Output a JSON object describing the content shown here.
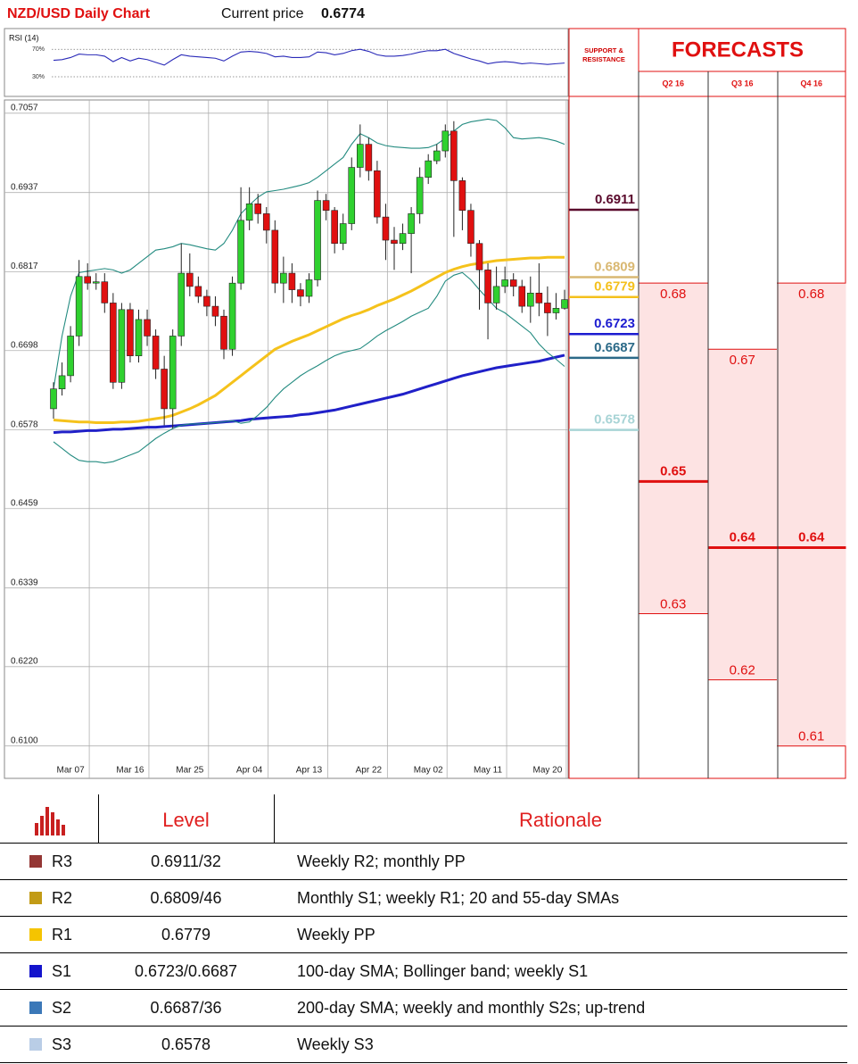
{
  "header": {
    "title": "NZD/USD Daily Chart",
    "price_label": "Current price",
    "price": 0.6774
  },
  "chart_data": [
    {
      "type": "candlestick",
      "categories": [
        null,
        null,
        "Mar 07",
        null,
        null,
        null,
        null,
        null,
        null,
        "Mar 16",
        null,
        null,
        null,
        null,
        null,
        null,
        "Mar 25",
        null,
        null,
        null,
        null,
        null,
        null,
        "Apr 04",
        null,
        null,
        null,
        null,
        null,
        null,
        "Apr 13",
        null,
        null,
        null,
        null,
        null,
        null,
        "Apr 22",
        null,
        null,
        null,
        null,
        null,
        null,
        "May 02",
        null,
        null,
        null,
        null,
        null,
        null,
        "May 11",
        null,
        null,
        null,
        null,
        null,
        null,
        "May 20",
        null,
        null
      ],
      "open": [
        0.661,
        0.664,
        0.666,
        0.672,
        0.681,
        0.68,
        0.6802,
        0.677,
        0.665,
        0.676,
        0.669,
        0.6745,
        0.672,
        0.667,
        0.661,
        0.672,
        0.6815,
        0.6795,
        0.678,
        0.6765,
        0.675,
        0.67,
        0.68,
        0.6895,
        0.692,
        0.6905,
        0.688,
        0.68,
        0.6815,
        0.679,
        0.678,
        0.6805,
        0.6925,
        0.691,
        0.686,
        0.689,
        0.6975,
        0.701,
        0.697,
        0.69,
        0.6865,
        0.686,
        0.6875,
        0.6905,
        0.696,
        0.6985,
        0.7,
        0.703,
        0.6955,
        0.691,
        0.686,
        0.682,
        0.677,
        0.6795,
        0.6805,
        0.6795,
        0.6765,
        0.6785,
        0.677,
        0.6755,
        0.6762
      ],
      "high": [
        0.665,
        0.668,
        0.6735,
        0.6835,
        0.683,
        0.6815,
        0.6815,
        0.6785,
        0.677,
        0.677,
        0.676,
        0.676,
        0.673,
        0.669,
        0.673,
        0.686,
        0.6845,
        0.681,
        0.679,
        0.678,
        0.676,
        0.681,
        0.6945,
        0.6945,
        0.6935,
        0.6915,
        0.6895,
        0.684,
        0.683,
        0.68,
        0.6815,
        0.694,
        0.6935,
        0.6915,
        0.6905,
        0.699,
        0.704,
        0.702,
        0.6985,
        0.692,
        0.6885,
        0.689,
        0.6915,
        0.6975,
        0.6995,
        0.701,
        0.704,
        0.7045,
        0.696,
        0.692,
        0.6865,
        0.683,
        0.6825,
        0.6825,
        0.6815,
        0.6805,
        0.681,
        0.683,
        0.6795,
        0.6785,
        0.679
      ],
      "low": [
        0.6595,
        0.663,
        0.665,
        0.6705,
        0.679,
        0.679,
        0.6755,
        0.664,
        0.664,
        0.668,
        0.668,
        0.6705,
        0.6655,
        0.6585,
        0.658,
        0.6705,
        0.678,
        0.677,
        0.675,
        0.6735,
        0.6685,
        0.669,
        0.679,
        0.688,
        0.689,
        0.686,
        0.6785,
        0.677,
        0.677,
        0.6765,
        0.677,
        0.6795,
        0.6895,
        0.6845,
        0.685,
        0.688,
        0.696,
        0.6955,
        0.689,
        0.6835,
        0.682,
        0.685,
        0.6815,
        0.689,
        0.695,
        0.698,
        0.699,
        0.687,
        0.688,
        0.684,
        0.676,
        0.6715,
        0.676,
        0.6785,
        0.678,
        0.6755,
        0.674,
        0.675,
        0.672,
        0.6745,
        0.676
      ],
      "close": [
        0.664,
        0.666,
        0.672,
        0.681,
        0.68,
        0.6802,
        0.677,
        0.665,
        0.676,
        0.669,
        0.6745,
        0.672,
        0.667,
        0.661,
        0.672,
        0.6815,
        0.6795,
        0.678,
        0.6765,
        0.675,
        0.67,
        0.68,
        0.6895,
        0.692,
        0.6905,
        0.688,
        0.68,
        0.6815,
        0.679,
        0.678,
        0.6805,
        0.6925,
        0.691,
        0.686,
        0.689,
        0.6975,
        0.701,
        0.697,
        0.69,
        0.6865,
        0.686,
        0.6875,
        0.6905,
        0.696,
        0.6985,
        0.7,
        0.703,
        0.6955,
        0.691,
        0.686,
        0.682,
        0.677,
        0.6795,
        0.6805,
        0.6795,
        0.6765,
        0.6785,
        0.677,
        0.6755,
        0.6762,
        0.6775
      ],
      "up_color": "#2fd12f",
      "down_color": "#e01010",
      "series": [
        {
          "color": "#2020c8",
          "values": [
            0.6574,
            0.6575,
            0.6575,
            0.6576,
            0.6577,
            0.6577,
            0.6578,
            0.6579,
            0.6579,
            0.658,
            0.6581,
            0.6582,
            0.6582,
            0.6583,
            0.6584,
            0.6585,
            0.6586,
            0.6587,
            0.6588,
            0.6589,
            0.659,
            0.6591,
            0.6592,
            0.6594,
            0.6595,
            0.6596,
            0.6597,
            0.6598,
            0.6599,
            0.6601,
            0.6602,
            0.6604,
            0.6606,
            0.6608,
            0.6611,
            0.6614,
            0.6617,
            0.662,
            0.6623,
            0.6626,
            0.6629,
            0.6632,
            0.6636,
            0.664,
            0.6644,
            0.6648,
            0.6652,
            0.6656,
            0.666,
            0.6663,
            0.6666,
            0.6669,
            0.6672,
            0.6674,
            0.6676,
            0.6678,
            0.668,
            0.6682,
            0.6685,
            0.6688,
            0.6691
          ]
        },
        {
          "color": "#f5c21b",
          "values": [
            0.6593,
            0.6592,
            0.6591,
            0.659,
            0.659,
            0.6589,
            0.6589,
            0.6589,
            0.659,
            0.659,
            0.6591,
            0.6593,
            0.6595,
            0.6597,
            0.66,
            0.6605,
            0.661,
            0.6616,
            0.6623,
            0.663,
            0.664,
            0.665,
            0.666,
            0.667,
            0.668,
            0.669,
            0.67,
            0.6706,
            0.6712,
            0.6717,
            0.6722,
            0.6728,
            0.6734,
            0.674,
            0.6746,
            0.6751,
            0.6755,
            0.676,
            0.6766,
            0.6771,
            0.6776,
            0.6782,
            0.6788,
            0.6795,
            0.6802,
            0.6809,
            0.6816,
            0.6821,
            0.6825,
            0.6828,
            0.683,
            0.6832,
            0.6834,
            0.6835,
            0.6836,
            0.6837,
            0.6838,
            0.6838,
            0.6839,
            0.6839,
            0.6839
          ]
        },
        {
          "color": "#238b80",
          "values": [
            0.664,
            0.672,
            0.678,
            0.6816,
            0.6818,
            0.682,
            0.6822,
            0.682,
            0.6815,
            0.682,
            0.683,
            0.684,
            0.685,
            0.6852,
            0.6855,
            0.686,
            0.6858,
            0.6855,
            0.6852,
            0.685,
            0.686,
            0.688,
            0.6905,
            0.6918,
            0.693,
            0.6938,
            0.694,
            0.6942,
            0.6945,
            0.6948,
            0.6952,
            0.696,
            0.697,
            0.698,
            0.699,
            0.701,
            0.7026,
            0.702,
            0.7012,
            0.7008,
            0.7006,
            0.7005,
            0.7004,
            0.7004,
            0.7005,
            0.701,
            0.7019,
            0.703,
            0.704,
            0.7044,
            0.7046,
            0.7048,
            0.7046,
            0.7035,
            0.702,
            0.7018,
            0.7019,
            0.702,
            0.7018,
            0.7015,
            0.701
          ]
        },
        {
          "color": "#238b80",
          "values": [
            0.656,
            0.655,
            0.654,
            0.6532,
            0.653,
            0.653,
            0.6528,
            0.653,
            0.6535,
            0.654,
            0.6545,
            0.6555,
            0.6565,
            0.6573,
            0.658,
            0.6585,
            0.6587,
            0.6587,
            0.6588,
            0.6589,
            0.659,
            0.6592,
            0.6588,
            0.659,
            0.66,
            0.6612,
            0.6627,
            0.664,
            0.665,
            0.666,
            0.6668,
            0.6675,
            0.6683,
            0.669,
            0.6695,
            0.6698,
            0.6701,
            0.671,
            0.672,
            0.6728,
            0.6735,
            0.6742,
            0.675,
            0.6756,
            0.6762,
            0.678,
            0.6803,
            0.6812,
            0.6816,
            0.6805,
            0.679,
            0.6776,
            0.6762,
            0.6755,
            0.6745,
            0.6735,
            0.6725,
            0.6708,
            0.6695,
            0.6685,
            0.6674
          ]
        }
      ],
      "ylim": [
        0.6051,
        0.7077
      ],
      "yticks": [
        0.7057,
        0.6937,
        0.6817,
        0.6698,
        0.6578,
        0.6459,
        0.6339,
        {
          "value": 0.622,
          "label": "0.6220"
        },
        {
          "value": 0.61,
          "label": "0.6100"
        }
      ],
      "grid": true
    },
    {
      "type": "line",
      "title": "RSI (14)",
      "color": "#2a2ab8",
      "values": [
        54,
        55,
        58,
        63,
        62,
        62,
        60,
        52,
        58,
        53,
        57,
        55,
        51,
        47,
        55,
        62,
        60,
        59,
        58,
        57,
        53,
        60,
        66,
        67,
        66,
        64,
        59,
        60,
        58,
        58,
        59,
        66,
        65,
        62,
        64,
        68,
        70,
        67,
        62,
        60,
        60,
        61,
        63,
        66,
        68,
        68,
        70,
        64,
        60,
        56,
        53,
        49,
        51,
        52,
        51,
        49,
        50,
        49,
        48,
        49,
        50
      ],
      "ylim": [
        4,
        95
      ],
      "yticks": [
        {
          "value": 70,
          "label": "70%"
        },
        {
          "value": 30,
          "label": "30%"
        }
      ]
    },
    {
      "type": "forecast",
      "title": "FORECASTS",
      "levels_title": "SUPPORT & RESISTANCE",
      "levels": [
        {
          "value": 0.6911,
          "color": "#5a0a2c"
        },
        {
          "value": 0.6809,
          "color": "#d9b872"
        },
        {
          "value": 0.6779,
          "color": "#f4c01c"
        },
        {
          "value": 0.6723,
          "color": "#1c1cd0"
        },
        {
          "value": 0.6687,
          "color": "#2c6a88"
        },
        {
          "value": 0.6578,
          "color": "#a8d4d6"
        }
      ],
      "categories": [
        "Q2 16",
        "Q3 16",
        "Q4 16"
      ],
      "high": [
        0.68,
        0.67,
        0.68
      ],
      "mid": [
        0.65,
        0.64,
        0.64
      ],
      "low": [
        0.63,
        0.62,
        0.61
      ],
      "color": "#e01010",
      "fill": "#fde3e3",
      "ylim": [
        0.6051,
        0.7077
      ]
    }
  ],
  "table": {
    "columns": [
      "Level",
      "Rationale"
    ],
    "rows": [
      {
        "label": "R3",
        "color": "#943634",
        "level": "0.6911/32",
        "rationale": "Weekly R2; monthly PP"
      },
      {
        "label": "R2",
        "color": "#c29b16",
        "level": "0.6809/46",
        "rationale": "Monthly S1; weekly R1; 20 and 55-day SMAs"
      },
      {
        "label": "R1",
        "color": "#f5c400",
        "level": "0.6779",
        "rationale": "Weekly PP"
      },
      {
        "label": "S1",
        "color": "#1414cc",
        "level": "0.6723/0.6687",
        "rationale": "100-day SMA; Bollinger band; weekly S1"
      },
      {
        "label": "S2",
        "color": "#3b78b8",
        "level": "0.6687/36",
        "rationale": "200-day SMA; weekly and monthly S2s; up-trend"
      },
      {
        "label": "S3",
        "color": "#b9cde6",
        "level": "0.6578",
        "rationale": "Weekly S3"
      }
    ]
  }
}
